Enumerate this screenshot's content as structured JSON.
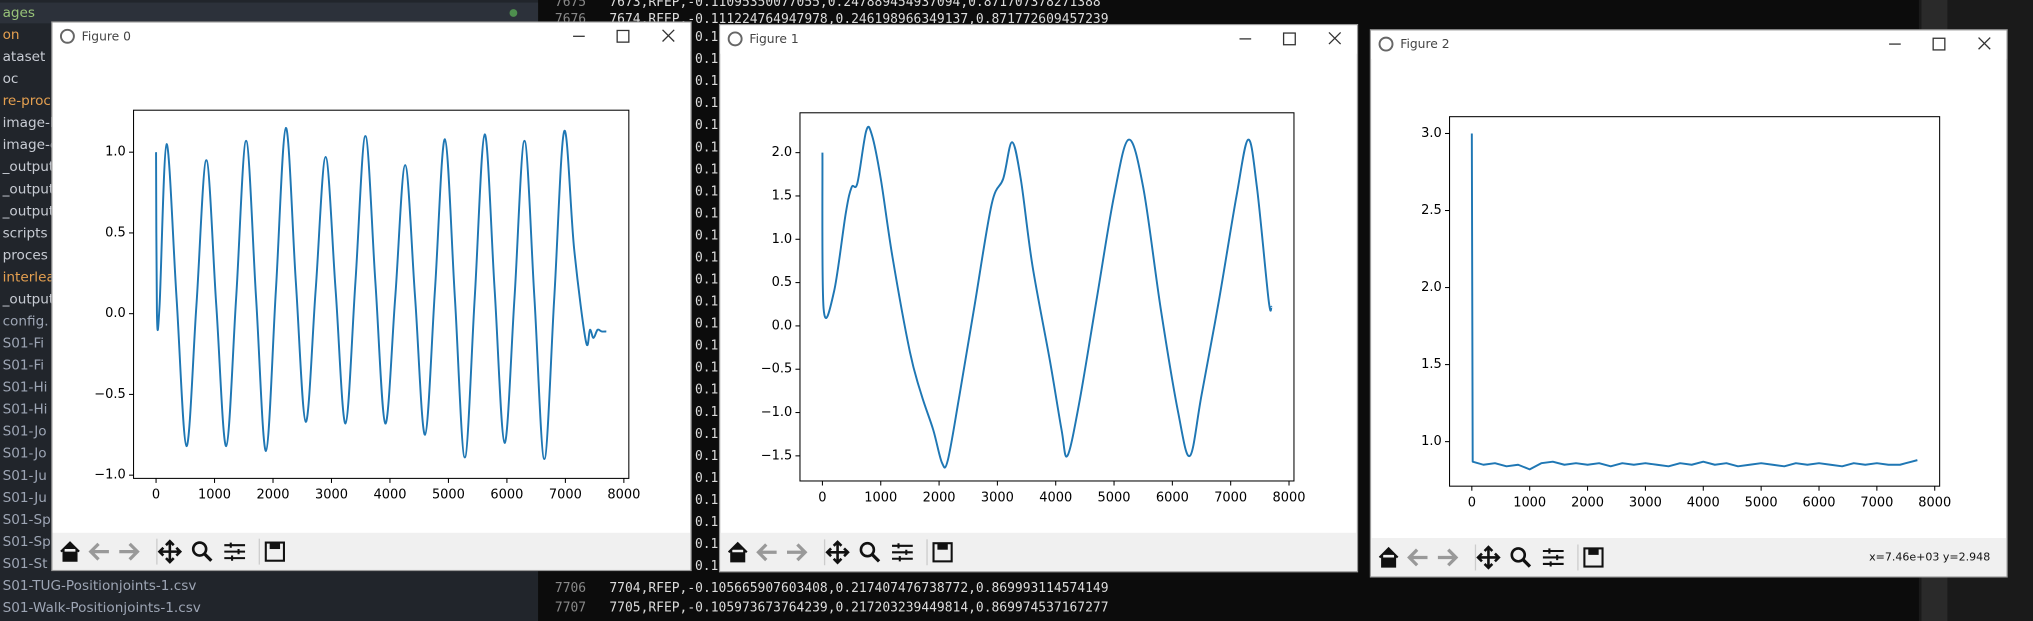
{
  "sidebar": {
    "items": [
      {
        "text": "ages",
        "color": "#98c379"
      },
      {
        "text": "on",
        "color": "#e5a050"
      },
      {
        "text": "ataset",
        "color": "#c8ccd4"
      },
      {
        "text": "oc",
        "color": "#c8ccd4"
      },
      {
        "text": "re-proces",
        "color": "#e5a050"
      },
      {
        "text": "image-bu",
        "color": "#c8ccd4"
      },
      {
        "text": "image-en",
        "color": "#c8ccd4"
      },
      {
        "text": "_output",
        "color": "#c8ccd4"
      },
      {
        "text": "_output",
        "color": "#c8ccd4"
      },
      {
        "text": "_output",
        "color": "#c8ccd4"
      },
      {
        "text": "scripts",
        "color": "#c8ccd4"
      },
      {
        "text": "proces",
        "color": "#c8ccd4"
      },
      {
        "text": "interleave",
        "color": "#e5a050"
      },
      {
        "text": "_output",
        "color": "#c8ccd4"
      },
      {
        "text": "config.",
        "color": "#9da5b4"
      },
      {
        "text": "S01-Fi",
        "color": "#9da5b4"
      },
      {
        "text": "S01-Fi",
        "color": "#9da5b4"
      },
      {
        "text": "S01-Hi",
        "color": "#9da5b4"
      },
      {
        "text": "S01-Hi",
        "color": "#9da5b4"
      },
      {
        "text": "S01-Jo",
        "color": "#9da5b4"
      },
      {
        "text": "S01-Jo",
        "color": "#9da5b4"
      },
      {
        "text": "S01-Ju",
        "color": "#9da5b4"
      },
      {
        "text": "S01-Ju",
        "color": "#9da5b4"
      },
      {
        "text": "S01-Sp",
        "color": "#9da5b4"
      },
      {
        "text": "S01-Sp",
        "color": "#9da5b4"
      },
      {
        "text": "S01-St",
        "color": "#9da5b4"
      },
      {
        "text": "S01-TUG-Positionjoints-1.csv",
        "color": "#9da5b4"
      },
      {
        "text": "S01-Walk-Positionjoints-1.csv",
        "color": "#9da5b4"
      }
    ]
  },
  "terminal": {
    "lines": [
      {
        "num": "7675",
        "text": "7673,RFEP,-0.11095350077055,0.247889454937094,0.871707378271388"
      },
      {
        "num": "7676",
        "text": "7674,RFEP,-0.111224764947978,0.246198966349137,0.871772609457239"
      },
      {
        "num": "7706",
        "text": "7704,RFEP,-0.105665907603408,0.217407476738772,0.869993114574149"
      },
      {
        "num": "7707",
        "text": "7705,RFEP,-0.105973673764239,0.217203239449814,0.869974537167277"
      }
    ],
    "fragments": [
      "0.1",
      "0.1",
      "0.1",
      "0.1",
      "0.1",
      "0.1",
      "0.1",
      "0.1",
      "0.1",
      "0.1",
      "0.1",
      "0.1",
      "0.1",
      "0.1",
      "0.1",
      "0.1",
      "0.1",
      "0.1",
      "0.1",
      "0.1",
      "0.1",
      "0.1",
      "0.1",
      "0.1",
      "0.1"
    ]
  },
  "windows": [
    {
      "title": "Figure 0"
    },
    {
      "title": "Figure 1"
    },
    {
      "title": "Figure 2",
      "status": "x=7.46e+03 y=2.948"
    }
  ],
  "chart_data": [
    {
      "type": "line",
      "x": [
        0,
        15,
        60,
        180,
        350,
        520,
        690,
        860,
        1030,
        1200,
        1370,
        1540,
        1710,
        1880,
        2050,
        2220,
        2390,
        2560,
        2730,
        2900,
        3070,
        3240,
        3410,
        3580,
        3750,
        3920,
        4090,
        4260,
        4430,
        4600,
        4770,
        4940,
        5110,
        5280,
        5450,
        5620,
        5790,
        5960,
        6130,
        6300,
        6470,
        6640,
        6810,
        6980,
        7150,
        7350,
        7420,
        7480,
        7550,
        7620,
        7700
      ],
      "series": [
        {
          "color": "#1f77b4",
          "values": [
            1.0,
            0.0,
            0.05,
            1.05,
            0.1,
            -0.82,
            0.05,
            0.95,
            0.05,
            -0.82,
            0.1,
            1.07,
            0.1,
            -0.85,
            0.15,
            1.15,
            0.2,
            -0.67,
            0.15,
            0.97,
            0.15,
            -0.68,
            0.2,
            1.1,
            0.2,
            -0.68,
            0.1,
            0.92,
            0.1,
            -0.75,
            0.15,
            1.08,
            0.1,
            -0.89,
            0.1,
            1.11,
            0.15,
            -0.8,
            0.1,
            1.07,
            0.1,
            -0.9,
            0.1,
            1.13,
            0.4,
            -0.17,
            -0.1,
            -0.15,
            -0.1,
            -0.11,
            -0.11
          ]
        }
      ],
      "xlim": [
        -385,
        8085
      ],
      "xticks": [
        0,
        1000,
        2000,
        3000,
        4000,
        5000,
        6000,
        7000,
        8000
      ],
      "ylim": [
        -1.02,
        1.26
      ],
      "yticks": [
        {
          "value": -1,
          "label": "−1.0"
        },
        {
          "value": -0.5,
          "label": "−0.5"
        },
        {
          "value": 0,
          "label": "0.0"
        },
        {
          "value": 0.5,
          "label": "0.5"
        },
        {
          "value": 1,
          "label": "1.0"
        }
      ]
    },
    {
      "type": "line",
      "x": [
        0,
        20,
        200,
        400,
        500,
        600,
        750,
        850,
        1000,
        1200,
        1500,
        1700,
        1900,
        2050,
        2150,
        2350,
        2600,
        2900,
        3100,
        3250,
        3400,
        3600,
        3900,
        4100,
        4200,
        4400,
        4700,
        5000,
        5250,
        5500,
        5800,
        6100,
        6300,
        6500,
        6800,
        7100,
        7300,
        7450,
        7650,
        7700
      ],
      "series": [
        {
          "color": "#1f77b4",
          "values": [
            2.0,
            0.2,
            0.4,
            1.3,
            1.6,
            1.65,
            2.25,
            2.2,
            1.7,
            0.8,
            -0.3,
            -0.8,
            -1.2,
            -1.58,
            -1.55,
            -0.8,
            0.2,
            1.4,
            1.7,
            2.12,
            1.7,
            0.7,
            -0.4,
            -1.2,
            -1.5,
            -0.9,
            0.3,
            1.5,
            2.15,
            1.6,
            0.2,
            -1.0,
            -1.5,
            -0.8,
            0.3,
            1.5,
            2.15,
            1.6,
            0.3,
            0.22
          ]
        }
      ],
      "xlim": [
        -385,
        8085
      ],
      "xticks": [
        0,
        1000,
        2000,
        3000,
        4000,
        5000,
        6000,
        7000,
        8000
      ],
      "ylim": [
        -1.79,
        2.46
      ],
      "yticks": [
        {
          "value": -1.5,
          "label": "−1.5"
        },
        {
          "value": -1,
          "label": "−1.0"
        },
        {
          "value": -0.5,
          "label": "−0.5"
        },
        {
          "value": 0,
          "label": "0.0"
        },
        {
          "value": 0.5,
          "label": "0.5"
        },
        {
          "value": 1,
          "label": "1.0"
        },
        {
          "value": 1.5,
          "label": "1.5"
        },
        {
          "value": 2,
          "label": "2.0"
        }
      ]
    },
    {
      "type": "line",
      "x": [
        0,
        15,
        200,
        400,
        600,
        800,
        1000,
        1200,
        1400,
        1600,
        1800,
        2000,
        2200,
        2400,
        2600,
        2800,
        3000,
        3200,
        3400,
        3600,
        3800,
        4000,
        4200,
        4400,
        4600,
        4800,
        5000,
        5200,
        5400,
        5600,
        5800,
        6000,
        6200,
        6400,
        6600,
        6800,
        7000,
        7200,
        7400,
        7600,
        7700
      ],
      "series": [
        {
          "color": "#1f77b4",
          "values": [
            3.0,
            0.87,
            0.85,
            0.86,
            0.84,
            0.85,
            0.82,
            0.86,
            0.87,
            0.85,
            0.86,
            0.85,
            0.86,
            0.84,
            0.86,
            0.85,
            0.86,
            0.85,
            0.84,
            0.86,
            0.85,
            0.87,
            0.85,
            0.86,
            0.84,
            0.85,
            0.86,
            0.85,
            0.84,
            0.86,
            0.85,
            0.86,
            0.85,
            0.84,
            0.86,
            0.85,
            0.86,
            0.85,
            0.85,
            0.87,
            0.88
          ]
        }
      ],
      "xlim": [
        -385,
        8085
      ],
      "xticks": [
        0,
        1000,
        2000,
        3000,
        4000,
        5000,
        6000,
        7000,
        8000
      ],
      "ylim": [
        0.711,
        3.109
      ],
      "yticks": [
        {
          "value": 1,
          "label": "1.0"
        },
        {
          "value": 1.5,
          "label": "1.5"
        },
        {
          "value": 2,
          "label": "2.0"
        },
        {
          "value": 2.5,
          "label": "2.5"
        },
        {
          "value": 3,
          "label": "3.0"
        }
      ]
    }
  ]
}
